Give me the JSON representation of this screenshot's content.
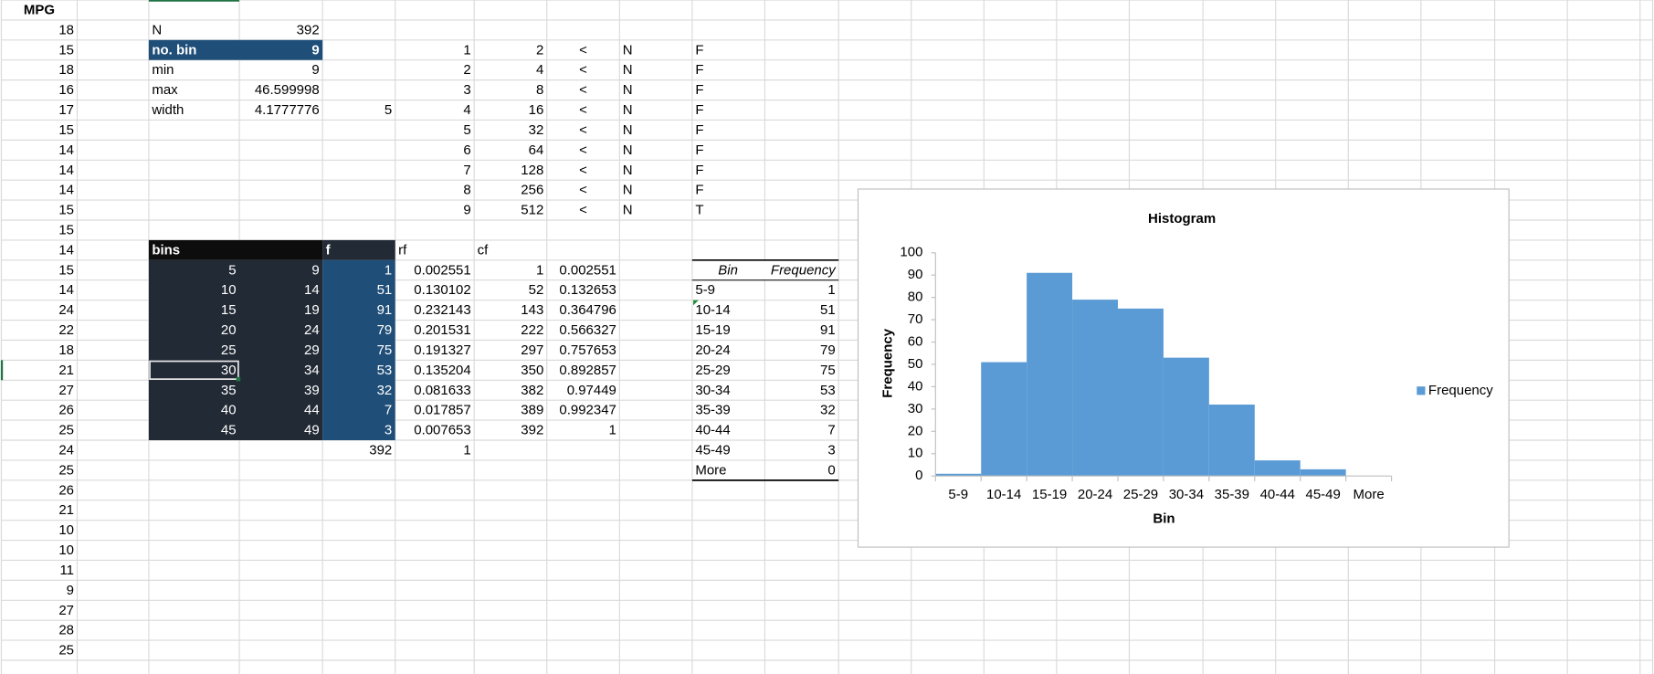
{
  "column_a": {
    "header": "MPG",
    "values": [
      18,
      15,
      18,
      16,
      17,
      15,
      14,
      14,
      14,
      15,
      15,
      14,
      15,
      14,
      24,
      22,
      18,
      21,
      27,
      26,
      25,
      24,
      25,
      26,
      21,
      10,
      10,
      11,
      9,
      27,
      28,
      25
    ]
  },
  "summary": {
    "rows": [
      [
        "N",
        392
      ],
      [
        "no. bin",
        9
      ],
      [
        "min",
        9
      ],
      [
        "max",
        46.599998
      ],
      [
        "width",
        4.1777776
      ]
    ],
    "extra": 5
  },
  "powers": {
    "rows": [
      [
        1,
        2,
        "<",
        "N",
        "F"
      ],
      [
        2,
        4,
        "<",
        "N",
        "F"
      ],
      [
        3,
        8,
        "<",
        "N",
        "F"
      ],
      [
        4,
        16,
        "<",
        "N",
        "F"
      ],
      [
        5,
        32,
        "<",
        "N",
        "F"
      ],
      [
        6,
        64,
        "<",
        "N",
        "F"
      ],
      [
        7,
        128,
        "<",
        "N",
        "F"
      ],
      [
        8,
        256,
        "<",
        "N",
        "F"
      ],
      [
        9,
        512,
        "<",
        "N",
        "T"
      ]
    ]
  },
  "bin_table": {
    "headers": [
      "bins",
      "f",
      "rf",
      "cf"
    ],
    "rows": [
      [
        5,
        9,
        1,
        0.002551,
        1,
        0.002551
      ],
      [
        10,
        14,
        51,
        0.130102,
        52,
        0.132653
      ],
      [
        15,
        19,
        91,
        0.232143,
        143,
        0.364796
      ],
      [
        20,
        24,
        79,
        0.201531,
        222,
        0.566327
      ],
      [
        25,
        29,
        75,
        0.191327,
        297,
        0.757653
      ],
      [
        30,
        34,
        53,
        0.135204,
        350,
        0.892857
      ],
      [
        35,
        39,
        32,
        0.081633,
        382,
        0.97449
      ],
      [
        40,
        44,
        7,
        0.017857,
        389,
        0.992347
      ],
      [
        45,
        49,
        3,
        0.007653,
        392,
        1
      ]
    ],
    "totals": [
      392,
      1
    ]
  },
  "frequency_table": {
    "headers": [
      "Bin",
      "Frequency"
    ],
    "rows": [
      [
        "5-9",
        1
      ],
      [
        "10-14",
        51
      ],
      [
        "15-19",
        91
      ],
      [
        "20-24",
        79
      ],
      [
        "25-29",
        75
      ],
      [
        "30-34",
        53
      ],
      [
        "35-39",
        32
      ],
      [
        "40-44",
        7
      ],
      [
        "45-49",
        3
      ],
      [
        "More",
        0
      ]
    ]
  },
  "chart_data": {
    "type": "bar",
    "title": "Histogram",
    "x_label": "Bin",
    "y_label": "Frequency",
    "categories": [
      "5-9",
      "10-14",
      "15-19",
      "20-24",
      "25-29",
      "30-34",
      "35-39",
      "40-44",
      "45-49",
      "More"
    ],
    "series": [
      {
        "name": "Frequency",
        "color": "#5b9bd5",
        "values": [
          1,
          51,
          91,
          79,
          75,
          53,
          32,
          7,
          3,
          0
        ]
      }
    ],
    "ylim": [
      0,
      100
    ],
    "yticks": [
      0,
      10,
      20,
      30,
      40,
      50,
      60,
      70,
      80,
      90,
      100
    ],
    "grid": false,
    "legend": "right"
  }
}
